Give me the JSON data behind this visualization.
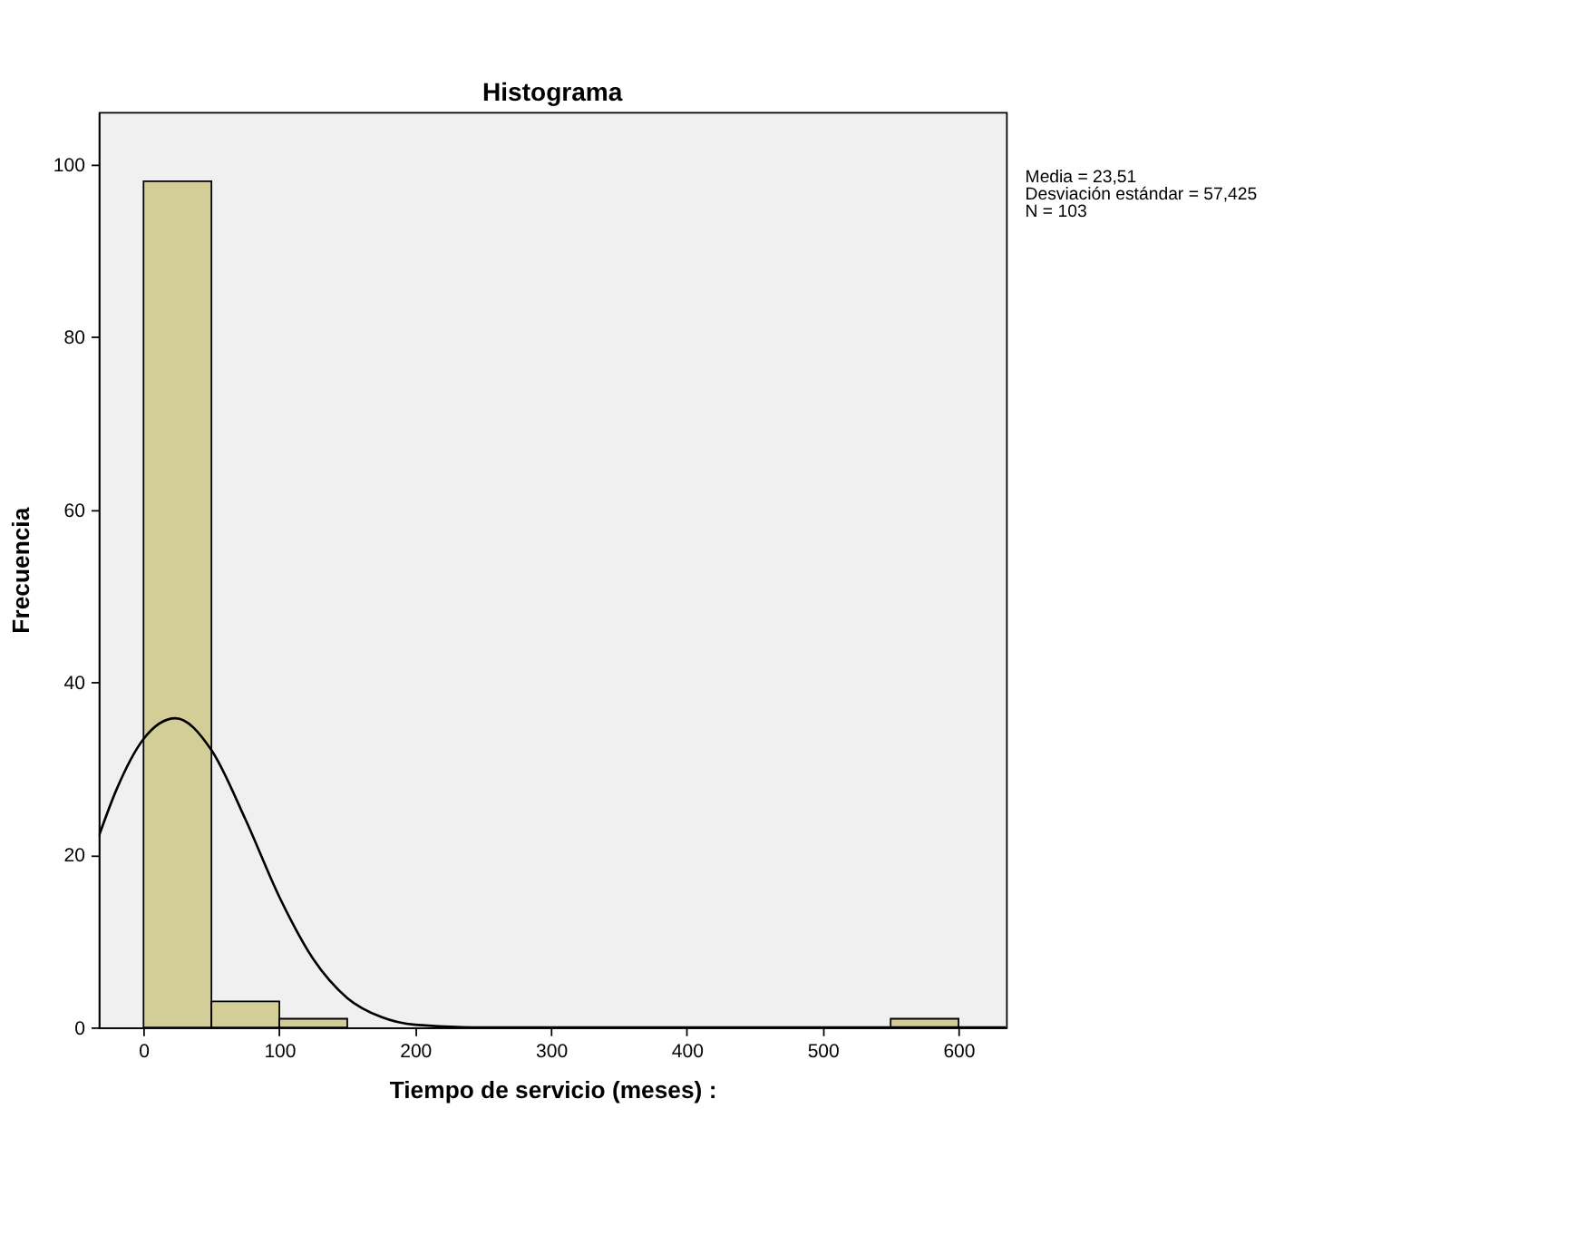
{
  "chart_data": {
    "type": "histogram",
    "title": "Histograma",
    "xlabel": "Tiempo de servicio (meses) :",
    "ylabel": "Frecuencia",
    "bins": [
      0,
      50,
      100,
      150,
      200,
      250,
      300,
      350,
      400,
      450,
      500,
      550,
      600
    ],
    "values": [
      98,
      3,
      1,
      0,
      0,
      0,
      0,
      0,
      0,
      0,
      0,
      1
    ],
    "color": "#d3ce97",
    "series": [
      {
        "type": "line",
        "color": "#000000",
        "x": [
          -33,
          -20,
          0,
          23.5,
          50,
          75,
          100,
          125,
          150,
          175,
          200,
          250,
          635
        ],
        "values": [
          22.1,
          27.5,
          33.4,
          35.8,
          32.1,
          24.1,
          15.1,
          7.9,
          3.4,
          1.2,
          0.3,
          0,
          0
        ]
      }
    ],
    "xlim": [
      -33,
      635
    ],
    "ylim": [
      0,
      106
    ],
    "xticks": [
      0,
      100,
      200,
      300,
      400,
      500,
      600
    ],
    "yticks": [
      0,
      20,
      40,
      60,
      80,
      100
    ],
    "grid": false,
    "annotations": [
      "Media = 23,51",
      "Desviación estándar = 57,425",
      "N = 103"
    ]
  }
}
